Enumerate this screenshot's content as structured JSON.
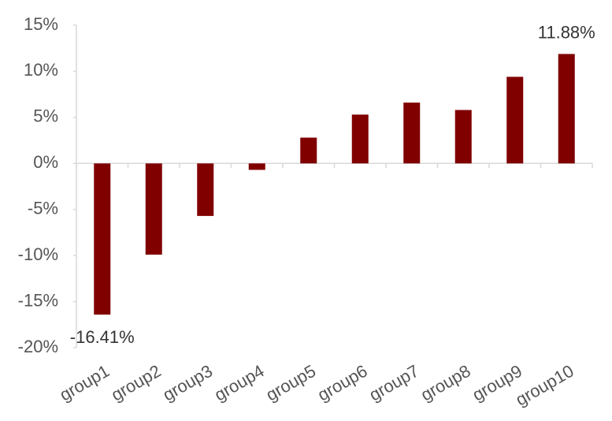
{
  "chart_data": {
    "type": "bar",
    "categories": [
      "group1",
      "group2",
      "group3",
      "group4",
      "group5",
      "group6",
      "group7",
      "group8",
      "group9",
      "group10"
    ],
    "values": [
      -16.41,
      -9.9,
      -5.7,
      -0.7,
      2.8,
      5.3,
      6.6,
      5.8,
      9.4,
      11.88
    ],
    "value_labels": [
      "-16.41%",
      null,
      null,
      null,
      null,
      null,
      null,
      null,
      null,
      "11.88%"
    ],
    "color": "#800000",
    "ylim": [
      -20,
      15
    ],
    "yticks": [
      {
        "value": -20,
        "label": "-20%"
      },
      {
        "value": -15,
        "label": "-15%"
      },
      {
        "value": -10,
        "label": "-10%"
      },
      {
        "value": -5,
        "label": "-5%"
      },
      {
        "value": 0,
        "label": "0%"
      },
      {
        "value": 5,
        "label": "5%"
      },
      {
        "value": 10,
        "label": "10%"
      },
      {
        "value": 15,
        "label": "15%"
      }
    ],
    "grid": false
  }
}
